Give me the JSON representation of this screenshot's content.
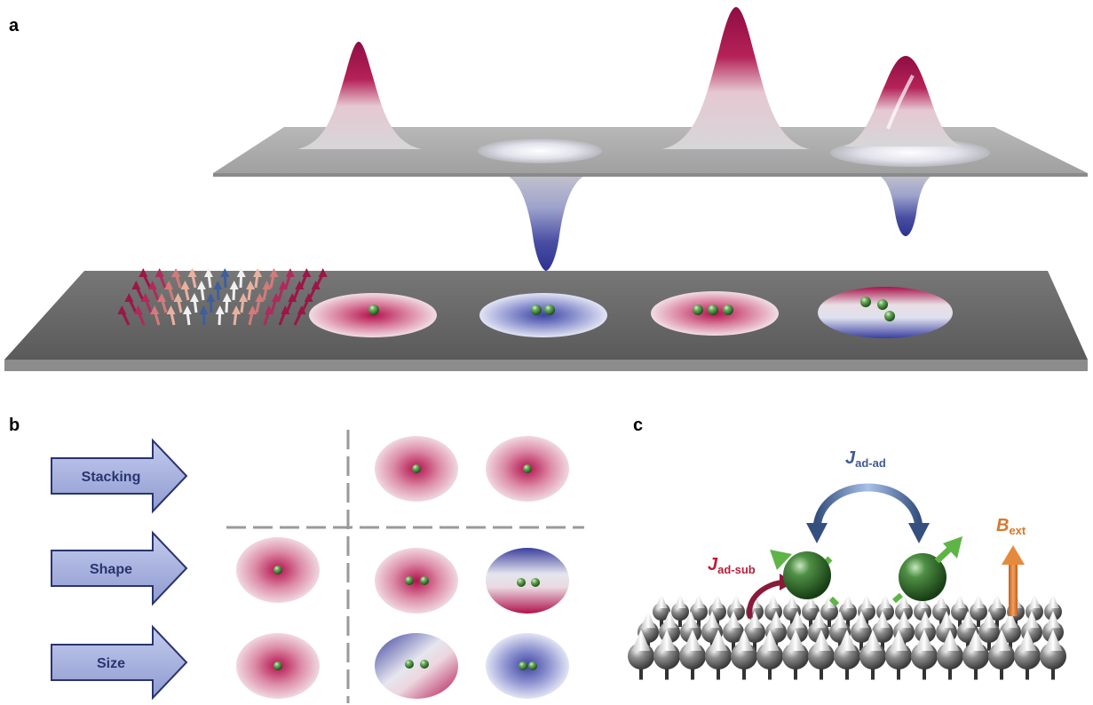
{
  "panels": {
    "a": {
      "letter": "a"
    },
    "b": {
      "letter": "b",
      "rows": [
        {
          "label": "Stacking"
        },
        {
          "label": "Shape"
        },
        {
          "label": "Size"
        }
      ]
    },
    "c": {
      "letter": "c",
      "j_ad_ad": {
        "main": "J",
        "sub": "ad-ad"
      },
      "j_ad_sub": {
        "main": "J",
        "sub": "ad-sub"
      },
      "b_ext": {
        "main": "B",
        "sub": "ext"
      }
    }
  },
  "colors": {
    "positive": "#a3124a",
    "negative": "#3b3f9a",
    "neutral": "#e6e6ea",
    "substrate": "#5a5a5a",
    "adatom": "#3a7a34",
    "spin_arrow": "#5fb446",
    "j_ad_ad_color": "#3f5a94",
    "j_ad_sub_color": "#b8203a",
    "b_ext_color": "#d9772a",
    "arrow_fill": "#aab6e0",
    "arrow_stroke": "#2a3470"
  }
}
